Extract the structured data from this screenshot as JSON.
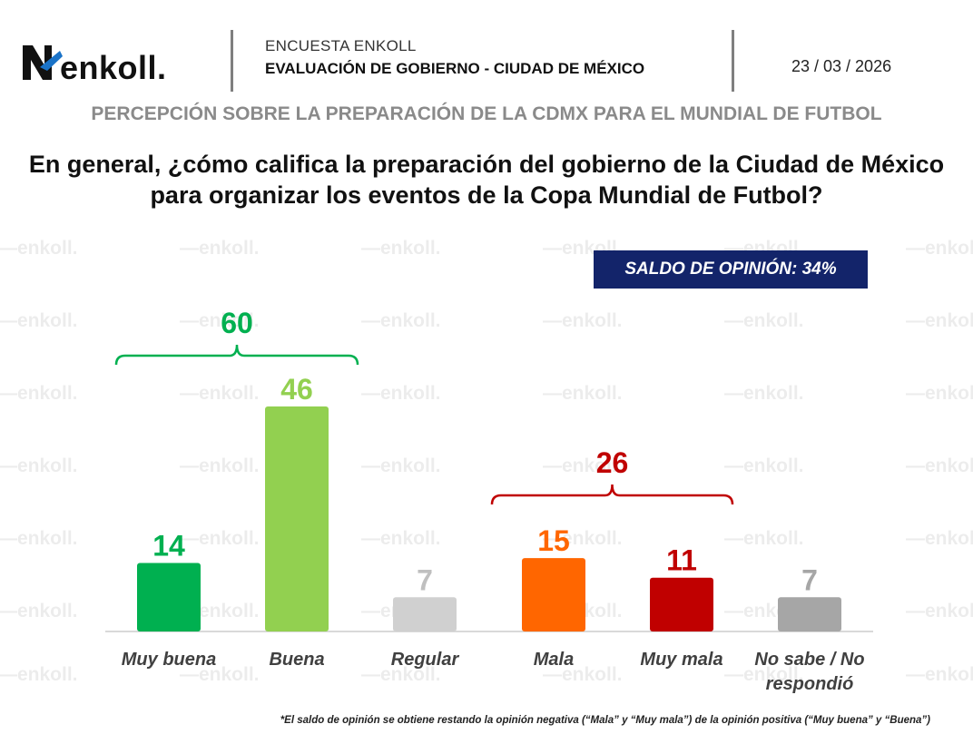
{
  "header": {
    "logo_text": "enkoll.",
    "line1": "ENCUESTA ENKOLL",
    "line2": "EVALUACIÓN DE GOBIERNO - CIUDAD DE MÉXICO",
    "date": "23 / 03 / 2026"
  },
  "subtitle": "PERCEPCIÓN SOBRE LA PREPARACIÓN DE LA CDMX PARA EL MUNDIAL DE FUTBOL",
  "question": "En general, ¿cómo califica la preparación del gobierno de la Ciudad de México para organizar los eventos de la Copa Mundial de Futbol?",
  "saldo_label": "SALDO DE OPINIÓN: 34%",
  "watermark_text": "enkoll.",
  "footnote": "*El saldo de opinión se obtiene restando la opinión negativa (“Mala” y “Muy mala”) de la opinión positiva (“Muy buena” y “Buena”)",
  "chart_data": {
    "type": "bar",
    "categories": [
      "Muy buena",
      "Buena",
      "Regular",
      "Mala",
      "Muy mala",
      "No sabe / No respondió"
    ],
    "values": [
      14,
      46,
      7,
      15,
      11,
      7
    ],
    "bar_colors": [
      "#00b050",
      "#92d050",
      "#d0d0d0",
      "#ff6600",
      "#c00000",
      "#a6a6a6"
    ],
    "label_colors": [
      "#00b050",
      "#92d050",
      "#bfbfbf",
      "#ff6600",
      "#c00000",
      "#a6a6a6"
    ],
    "groups": [
      {
        "label": "60",
        "value": 60,
        "categories": [
          "Muy buena",
          "Buena"
        ],
        "color": "#00b050"
      },
      {
        "label": "26",
        "value": 26,
        "categories": [
          "Mala",
          "Muy mala"
        ],
        "color": "#c00000"
      }
    ],
    "ylim": [
      0,
      46
    ],
    "grid": false,
    "legend": "none"
  }
}
